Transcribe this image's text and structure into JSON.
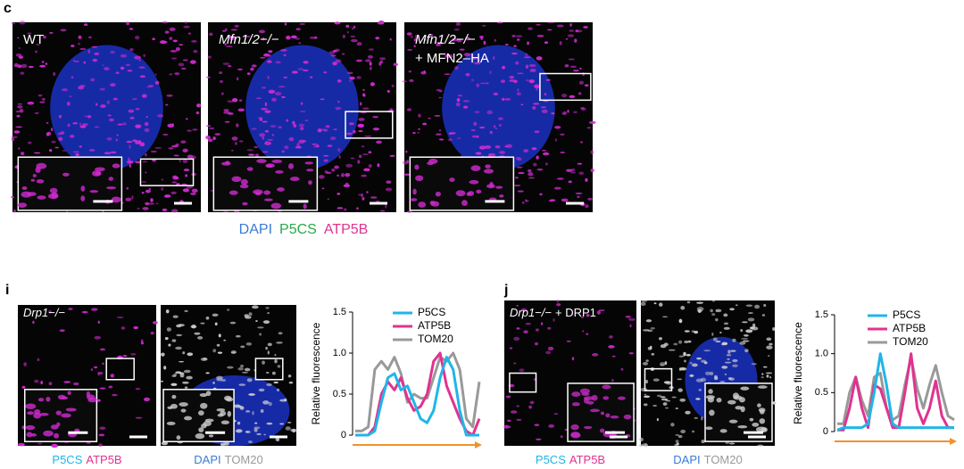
{
  "panel_c": {
    "label": "c",
    "images": [
      {
        "label": "WT"
      },
      {
        "label": "Mfn1/2−/−"
      },
      {
        "label": "Mfn1/2−/−",
        "sublabel": "+ MFN2–HA"
      }
    ],
    "legend": [
      {
        "text": "DAPI",
        "color": "#3a7bd5"
      },
      {
        "text": "P5CS",
        "color": "#2aa84a"
      },
      {
        "text": "ATP5B",
        "color": "#e0338f"
      }
    ]
  },
  "panel_i": {
    "label": "i",
    "image_label": "Drp1−/−",
    "captions": [
      [
        {
          "text": "P5CS",
          "color": "#1fb6e8"
        },
        {
          "text": "ATP5B",
          "color": "#e0338f"
        }
      ],
      [
        {
          "text": "DAPI",
          "color": "#3a7bd5"
        },
        {
          "text": "TOM20",
          "color": "#999999"
        }
      ]
    ]
  },
  "panel_j": {
    "label": "j",
    "image_label": "Drp1−/−",
    "image_label_suffix": "+ DRP1",
    "captions": [
      [
        {
          "text": "P5CS",
          "color": "#1fb6e8"
        },
        {
          "text": "ATP5B",
          "color": "#e0338f"
        }
      ],
      [
        {
          "text": "DAPI",
          "color": "#3a7bd5"
        },
        {
          "text": "TOM20",
          "color": "#999999"
        }
      ]
    ]
  },
  "chart_data": [
    {
      "type": "line",
      "ylabel": "Relative fluorescence",
      "ylim": [
        0,
        1.5
      ],
      "yticks": [
        0,
        0.5,
        {
          "value": 1,
          "label": "1.0"
        },
        1.5
      ],
      "series": [
        {
          "name": "P5CS",
          "color": "#1fb6e8",
          "values": [
            0,
            0,
            0,
            0.05,
            0.4,
            0.7,
            0.75,
            0.55,
            0.6,
            0.4,
            0.2,
            0.15,
            0.3,
            0.7,
            0.95,
            0.8,
            0.3,
            0,
            0,
            0
          ]
        },
        {
          "name": "ATP5B",
          "color": "#e0338f",
          "values": [
            0,
            0,
            0,
            0.1,
            0.5,
            0.65,
            0.55,
            0.7,
            0.45,
            0.3,
            0.35,
            0.5,
            0.9,
            1.0,
            0.6,
            0.4,
            0.2,
            0.05,
            0,
            0.2
          ]
        },
        {
          "name": "TOM20",
          "color": "#999999",
          "values": [
            0.05,
            0.05,
            0.1,
            0.8,
            0.9,
            0.8,
            0.95,
            0.75,
            0.4,
            0.5,
            0.45,
            0.45,
            0.7,
            0.95,
            0.9,
            1.0,
            0.8,
            0.2,
            0.1,
            0.65
          ]
        }
      ]
    },
    {
      "type": "line",
      "ylabel": "Relative fluorescence",
      "ylim": [
        0,
        1.5
      ],
      "yticks": [
        0,
        0.5,
        {
          "value": 1,
          "label": "1.0"
        },
        1.5
      ],
      "series": [
        {
          "name": "P5CS",
          "color": "#1fb6e8",
          "values": [
            0.02,
            0.05,
            0.05,
            0.05,
            0.05,
            0.1,
            0.5,
            1.0,
            0.6,
            0.1,
            0.05,
            0.05,
            0.05,
            0.05,
            0.05,
            0.05,
            0.05,
            0.05,
            0.05,
            0.05
          ]
        },
        {
          "name": "ATP5B",
          "color": "#e0338f",
          "values": [
            0.02,
            0.02,
            0.3,
            0.7,
            0.3,
            0.05,
            0.6,
            0.55,
            0.3,
            0.05,
            0.05,
            0.5,
            1.0,
            0.3,
            0.1,
            0.3,
            0.65,
            0.2,
            0.05,
            0.05
          ]
        },
        {
          "name": "TOM20",
          "color": "#999999",
          "values": [
            0.1,
            0.1,
            0.5,
            0.7,
            0.4,
            0.2,
            0.7,
            0.75,
            0.3,
            0.15,
            0.2,
            0.6,
            0.95,
            0.55,
            0.3,
            0.6,
            0.85,
            0.5,
            0.2,
            0.15
          ]
        }
      ]
    }
  ]
}
